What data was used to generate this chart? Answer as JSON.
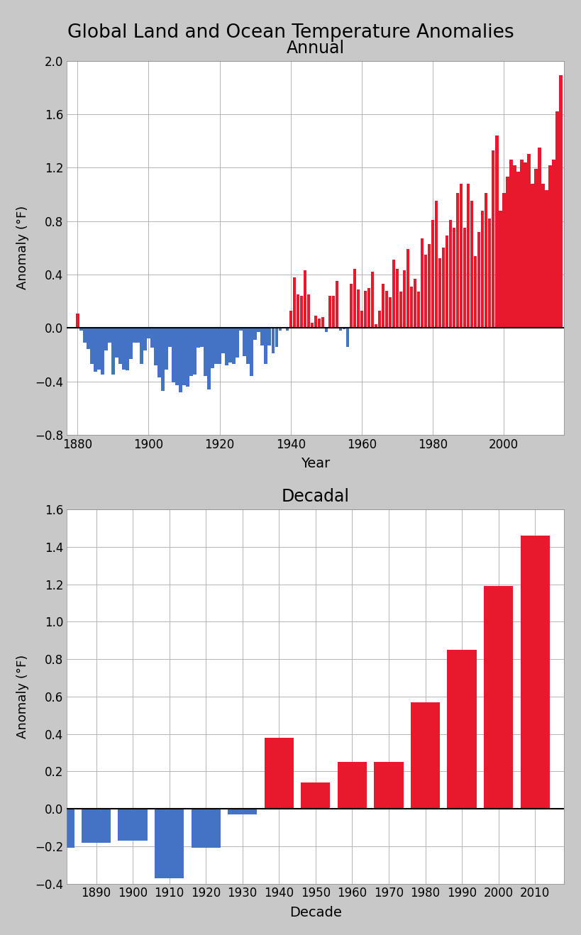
{
  "title": "Global Land and Ocean Temperature Anomalies",
  "annual_title": "Annual",
  "decadal_title": "Decadal",
  "annual_xlabel": "Year",
  "decadal_xlabel": "Decade",
  "ylabel": "Anomaly (°F)",
  "annual_years": [
    1880,
    1881,
    1882,
    1883,
    1884,
    1885,
    1886,
    1887,
    1888,
    1889,
    1890,
    1891,
    1892,
    1893,
    1894,
    1895,
    1896,
    1897,
    1898,
    1899,
    1900,
    1901,
    1902,
    1903,
    1904,
    1905,
    1906,
    1907,
    1908,
    1909,
    1910,
    1911,
    1912,
    1913,
    1914,
    1915,
    1916,
    1917,
    1918,
    1919,
    1920,
    1921,
    1922,
    1923,
    1924,
    1925,
    1926,
    1927,
    1928,
    1929,
    1930,
    1931,
    1932,
    1933,
    1934,
    1935,
    1936,
    1937,
    1938,
    1939,
    1940,
    1941,
    1942,
    1943,
    1944,
    1945,
    1946,
    1947,
    1948,
    1949,
    1950,
    1951,
    1952,
    1953,
    1954,
    1955,
    1956,
    1957,
    1958,
    1959,
    1960,
    1961,
    1962,
    1963,
    1964,
    1965,
    1966,
    1967,
    1968,
    1969,
    1970,
    1971,
    1972,
    1973,
    1974,
    1975,
    1976,
    1977,
    1978,
    1979,
    1980,
    1981,
    1982,
    1983,
    1984,
    1985,
    1986,
    1987,
    1988,
    1989,
    1990,
    1991,
    1992,
    1993,
    1994,
    1995,
    1996,
    1997,
    1998,
    1999,
    2000,
    2001,
    2002,
    2003,
    2004,
    2005,
    2006,
    2007,
    2008,
    2009,
    2010,
    2011,
    2012,
    2013,
    2014,
    2015,
    2016
  ],
  "annual_values": [
    0.11,
    -0.02,
    -0.11,
    -0.16,
    -0.27,
    -0.33,
    -0.31,
    -0.35,
    -0.17,
    -0.11,
    -0.35,
    -0.22,
    -0.27,
    -0.31,
    -0.32,
    -0.23,
    -0.11,
    -0.11,
    -0.27,
    -0.17,
    -0.08,
    -0.15,
    -0.28,
    -0.37,
    -0.47,
    -0.31,
    -0.14,
    -0.41,
    -0.43,
    -0.48,
    -0.43,
    -0.44,
    -0.36,
    -0.35,
    -0.15,
    -0.14,
    -0.36,
    -0.46,
    -0.3,
    -0.27,
    -0.27,
    -0.19,
    -0.28,
    -0.26,
    -0.27,
    -0.22,
    -0.02,
    -0.21,
    -0.27,
    -0.36,
    -0.09,
    -0.03,
    -0.13,
    -0.27,
    -0.13,
    -0.19,
    -0.14,
    -0.02,
    -0.0,
    -0.02,
    0.13,
    0.38,
    0.25,
    0.24,
    0.43,
    0.25,
    0.04,
    0.09,
    0.07,
    0.08,
    -0.03,
    0.24,
    0.24,
    0.35,
    -0.02,
    -0.01,
    -0.14,
    0.33,
    0.44,
    0.29,
    0.13,
    0.28,
    0.3,
    0.42,
    0.03,
    0.13,
    0.33,
    0.28,
    0.23,
    0.51,
    0.44,
    0.27,
    0.43,
    0.59,
    0.31,
    0.37,
    0.27,
    0.67,
    0.55,
    0.63,
    0.81,
    0.95,
    0.52,
    0.6,
    0.69,
    0.81,
    0.75,
    1.01,
    1.08,
    0.75,
    1.08,
    0.95,
    0.54,
    0.72,
    0.88,
    1.01,
    0.82,
    1.33,
    1.44,
    0.88,
    1.01,
    1.13,
    1.26,
    1.22,
    1.17,
    1.26,
    1.24,
    1.3,
    1.08,
    1.19,
    1.35,
    1.08,
    1.03,
    1.22,
    1.26,
    1.62,
    1.89
  ],
  "decadal_decades": [
    1880,
    1890,
    1900,
    1910,
    1920,
    1930,
    1940,
    1950,
    1960,
    1970,
    1980,
    1990,
    2000,
    2010
  ],
  "decadal_values": [
    -0.21,
    -0.18,
    -0.17,
    -0.37,
    -0.21,
    -0.03,
    0.38,
    0.14,
    0.25,
    0.25,
    0.57,
    0.85,
    1.19,
    1.46
  ],
  "red_color": "#e8192c",
  "blue_color": "#4472c4",
  "background_color": "#c8c8c8",
  "plot_bg_color": "#ffffff",
  "annual_ylim": [
    -0.8,
    2.0
  ],
  "decadal_ylim": [
    -0.4,
    1.6
  ],
  "annual_yticks": [
    -0.8,
    -0.4,
    0.0,
    0.4,
    0.8,
    1.2,
    1.6,
    2.0
  ],
  "decadal_yticks": [
    -0.4,
    -0.2,
    0.0,
    0.2,
    0.4,
    0.6,
    0.8,
    1.0,
    1.2,
    1.4,
    1.6
  ],
  "annual_xticks": [
    1880,
    1900,
    1920,
    1940,
    1960,
    1980,
    2000
  ],
  "decadal_xticks": [
    1890,
    1900,
    1910,
    1920,
    1930,
    1940,
    1950,
    1960,
    1970,
    1980,
    1990,
    2000,
    2010
  ]
}
